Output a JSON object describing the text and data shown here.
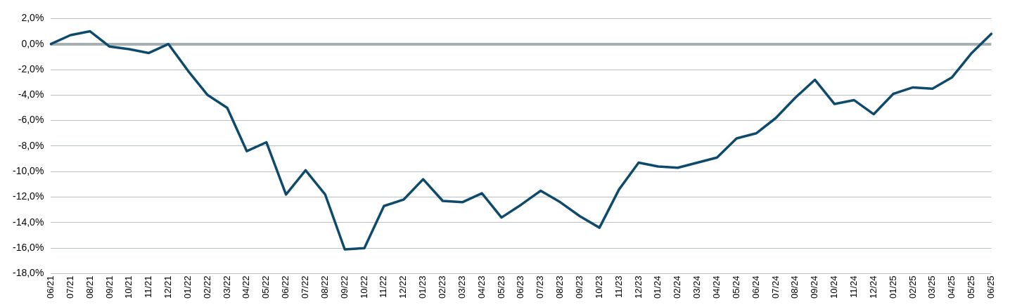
{
  "chart_data": {
    "type": "line",
    "categories": [
      "06/21",
      "07/21",
      "08/21",
      "09/21",
      "10/21",
      "11/21",
      "12/21",
      "01/22",
      "02/22",
      "03/22",
      "04/22",
      "05/22",
      "06/22",
      "07/22",
      "08/22",
      "09/22",
      "10/22",
      "11/22",
      "12/22",
      "01/23",
      "02/23",
      "03/23",
      "04/23",
      "05/23",
      "06/23",
      "07/23",
      "08/23",
      "09/23",
      "10/23",
      "11/23",
      "12/23",
      "01/24",
      "02/24",
      "03/24",
      "04/24",
      "05/24",
      "06/24",
      "07/24",
      "08/24",
      "09/24",
      "10/24",
      "11/24",
      "12/24",
      "01/25",
      "02/25",
      "03/25",
      "04/25",
      "05/25",
      "06/25"
    ],
    "series": [
      {
        "color": "#0e4a6b",
        "values": [
          0,
          0.7,
          1.0,
          -0.2,
          -0.4,
          -0.7,
          0,
          -2.1,
          -4.0,
          -5.0,
          -8.4,
          -7.7,
          -11.8,
          -9.9,
          -11.8,
          -16.1,
          -16.0,
          -12.7,
          -12.2,
          -10.6,
          -12.3,
          -12.4,
          -11.7,
          -13.6,
          -12.6,
          -11.5,
          -12.4,
          -13.5,
          -14.4,
          -11.4,
          -9.3,
          -9.6,
          -9.7,
          -9.3,
          -8.9,
          -7.4,
          -7.0,
          -5.8,
          -4.2,
          -2.8,
          -4.7,
          -4.4,
          -5.5,
          -3.9,
          -3.4,
          -3.5,
          -2.6,
          -0.7,
          0.8
        ]
      }
    ],
    "ylim": [
      -18,
      2
    ],
    "yticks": [
      {
        "value": -18,
        "label": "-18,0%"
      },
      {
        "value": -16,
        "label": "-16,0%"
      },
      {
        "value": -14,
        "label": "-14,0%"
      },
      {
        "value": -12,
        "label": "-12,0%"
      },
      {
        "value": -10,
        "label": "-10,0%"
      },
      {
        "value": -8,
        "label": "-8,0%"
      },
      {
        "value": -6,
        "label": "-6,0%"
      },
      {
        "value": -4,
        "label": "-4,0%"
      },
      {
        "value": -2,
        "label": "-2,0%"
      },
      {
        "value": 0,
        "label": "0,0%"
      },
      {
        "value": 2,
        "label": "2,0%"
      }
    ],
    "grid": "y",
    "legend": false,
    "marker": "none",
    "line_style": "solid"
  }
}
